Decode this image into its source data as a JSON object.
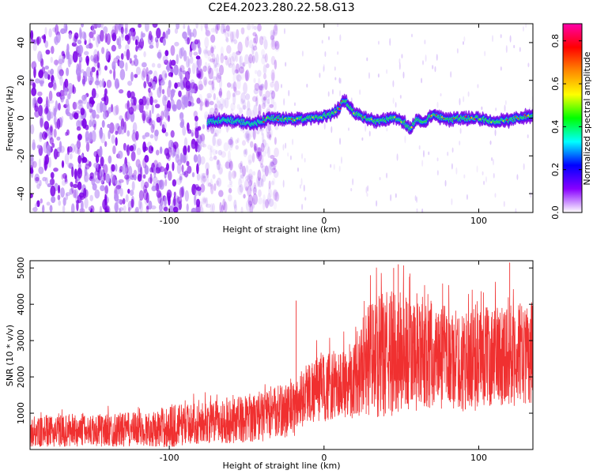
{
  "figure": {
    "title": "C2E4.2023.280.22.58.G13"
  },
  "chart_data": [
    {
      "type": "heatmap",
      "title": "C2E4.2023.280.22.58.G13",
      "xlabel": "Height of straight line (km)",
      "ylabel": "Frequency (Hz)",
      "xlim": [
        -190,
        135
      ],
      "ylim": [
        -50,
        50
      ],
      "xticks": [
        -100,
        0,
        100
      ],
      "yticks": [
        -40,
        -20,
        0,
        20,
        40
      ],
      "grid": false,
      "ridge": {
        "description_free": true,
        "x": [
          -75,
          -60,
          -45,
          -35,
          -30,
          -20,
          -10,
          0,
          5,
          10,
          13,
          18,
          25,
          35,
          45,
          52,
          55,
          60,
          65,
          70,
          80,
          90,
          100,
          110,
          120,
          130,
          135
        ],
        "y": [
          -2,
          -1,
          -3,
          0,
          0,
          -1,
          0,
          1,
          2,
          5,
          10,
          4,
          0,
          -2,
          0,
          -2,
          -6,
          -1,
          -2,
          2,
          -1,
          0,
          0,
          -2,
          -1,
          1,
          1
        ]
      },
      "colorbar": {
        "label": "Normalized spectral amplitude",
        "range": [
          0,
          0.88
        ],
        "ticks": [
          0.0,
          0.2,
          0.4,
          0.6,
          0.8
        ],
        "tick_labels": [
          "0.0",
          "0.2",
          "0.4",
          "0.6",
          "0.8"
        ],
        "colors": [
          "#ffffff",
          "#8800ff",
          "#0000ff",
          "#00ffff",
          "#00ff00",
          "#ffff00",
          "#ff8800",
          "#ff0000",
          "#ff00aa"
        ]
      }
    },
    {
      "type": "line",
      "xlabel": "Height of straight line (km)",
      "ylabel": "SNR (10 * v/v)",
      "xlim": [
        -190,
        135
      ],
      "ylim": [
        0,
        5200
      ],
      "xticks": [
        -100,
        0,
        100
      ],
      "yticks": [
        1000,
        2000,
        3000,
        4000,
        5000
      ],
      "grid": false,
      "color": "#f03030",
      "envelope": {
        "x": [
          -190,
          -170,
          -150,
          -130,
          -110,
          -100,
          -90,
          -80,
          -70,
          -60,
          -50,
          -40,
          -30,
          -20,
          -15,
          -10,
          0,
          10,
          20,
          25,
          30,
          40,
          50,
          60,
          70,
          80,
          90,
          100,
          110,
          120,
          130,
          135
        ],
        "mean": [
          450,
          500,
          520,
          540,
          560,
          620,
          700,
          720,
          750,
          800,
          850,
          900,
          1050,
          1100,
          1400,
          1600,
          1700,
          1800,
          1900,
          2400,
          2500,
          2600,
          2700,
          2500,
          2600,
          2500,
          2400,
          2500,
          2600,
          2700,
          2600,
          2700
        ],
        "spread": [
          500,
          550,
          550,
          600,
          600,
          800,
          700,
          700,
          750,
          800,
          800,
          850,
          900,
          1000,
          1000,
          1100,
          1200,
          1200,
          1300,
          1800,
          2000,
          2200,
          2200,
          1900,
          1800,
          1800,
          1700,
          1800,
          1700,
          1900,
          1700,
          1800
        ]
      },
      "peaks": [
        {
          "x": -18,
          "y": 4100
        },
        {
          "x": 45,
          "y": 5000
        },
        {
          "x": 48,
          "y": 5100
        },
        {
          "x": 120,
          "y": 5150
        },
        {
          "x": 60,
          "y": 4300
        }
      ]
    }
  ]
}
